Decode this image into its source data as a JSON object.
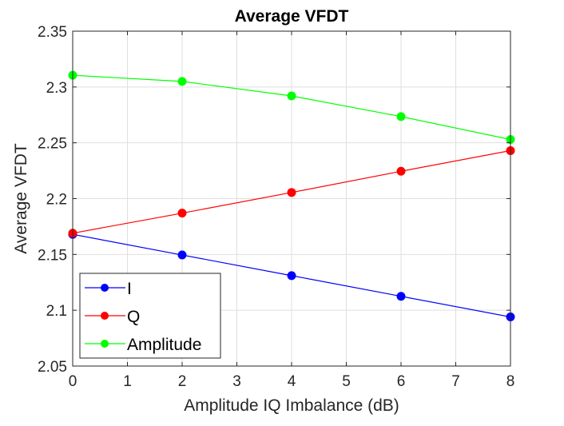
{
  "chart_data": {
    "type": "line",
    "title": "Average VFDT",
    "xlabel": "Amplitude IQ Imbalance (dB)",
    "ylabel": "Average VFDT",
    "xlim": [
      0,
      8
    ],
    "ylim": [
      2.05,
      2.35
    ],
    "xticks": [
      "0",
      "1",
      "2",
      "3",
      "4",
      "5",
      "6",
      "7",
      "8"
    ],
    "yticks": [
      "2.05",
      "2.1",
      "2.15",
      "2.2",
      "2.25",
      "2.3",
      "2.35"
    ],
    "grid": true,
    "legend_position": "bottom-left",
    "x": [
      0,
      2,
      4,
      6,
      8
    ],
    "series": [
      {
        "name": "I",
        "color": "#0000ff",
        "marker": "circle",
        "values": [
          2.168,
          2.1495,
          2.131,
          2.1125,
          2.094
        ]
      },
      {
        "name": "Q",
        "color": "#ff0000",
        "marker": "circle",
        "values": [
          2.169,
          2.187,
          2.2055,
          2.2245,
          2.243
        ]
      },
      {
        "name": "Amplitude",
        "color": "#00ff00",
        "marker": "circle",
        "values": [
          2.3105,
          2.305,
          2.292,
          2.2735,
          2.253
        ]
      }
    ]
  }
}
